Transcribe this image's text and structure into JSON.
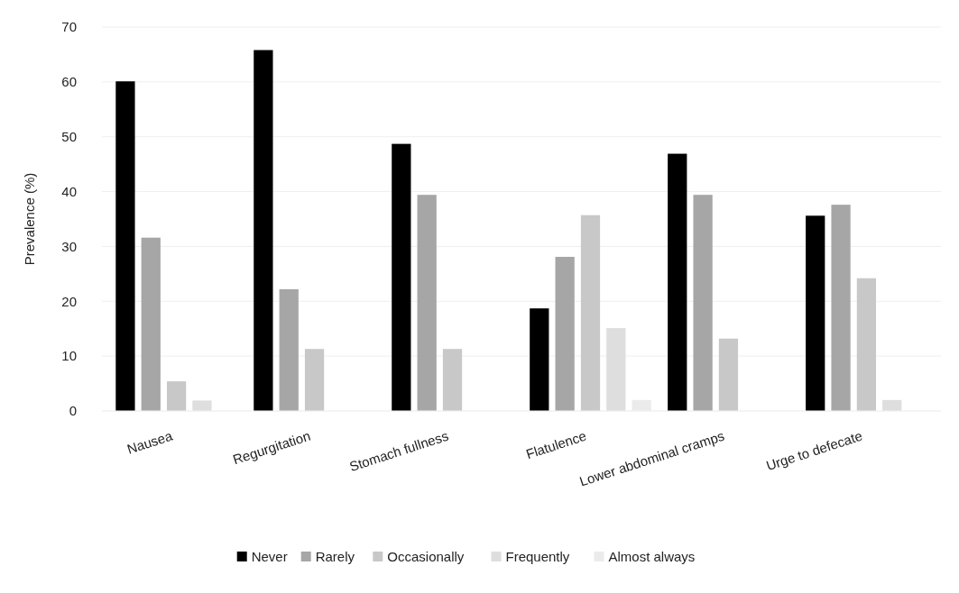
{
  "chart_data": {
    "type": "bar",
    "ylabel": "Prevalence (%)",
    "categories": [
      "Nausea",
      "Regurgitation",
      "Stomach fullness",
      "Flatulence",
      "Lower abdominal cramps",
      "Urge to defecate"
    ],
    "series": [
      {
        "name": "Never",
        "color": "#000000",
        "values": [
          60.1,
          65.8,
          48.7,
          18.7,
          46.9,
          35.6
        ]
      },
      {
        "name": "Rarely",
        "color": "#a6a6a6",
        "values": [
          31.6,
          22.2,
          39.4,
          28.1,
          39.4,
          37.6
        ]
      },
      {
        "name": "Occasionally",
        "color": "#c8c8c8",
        "values": [
          5.4,
          11.3,
          11.3,
          35.7,
          13.2,
          24.2
        ]
      },
      {
        "name": "Frequently",
        "color": "#dedede",
        "values": [
          1.9,
          0,
          0,
          15.1,
          0,
          2.0
        ]
      },
      {
        "name": "Almost always",
        "color": "#ebebeb",
        "values": [
          0,
          0,
          0,
          2.0,
          0,
          0
        ]
      }
    ],
    "ylim": [
      0,
      70
    ],
    "yticks": [
      0,
      10,
      20,
      30,
      40,
      50,
      60,
      70
    ],
    "grid": "y",
    "legend": "bottom"
  }
}
